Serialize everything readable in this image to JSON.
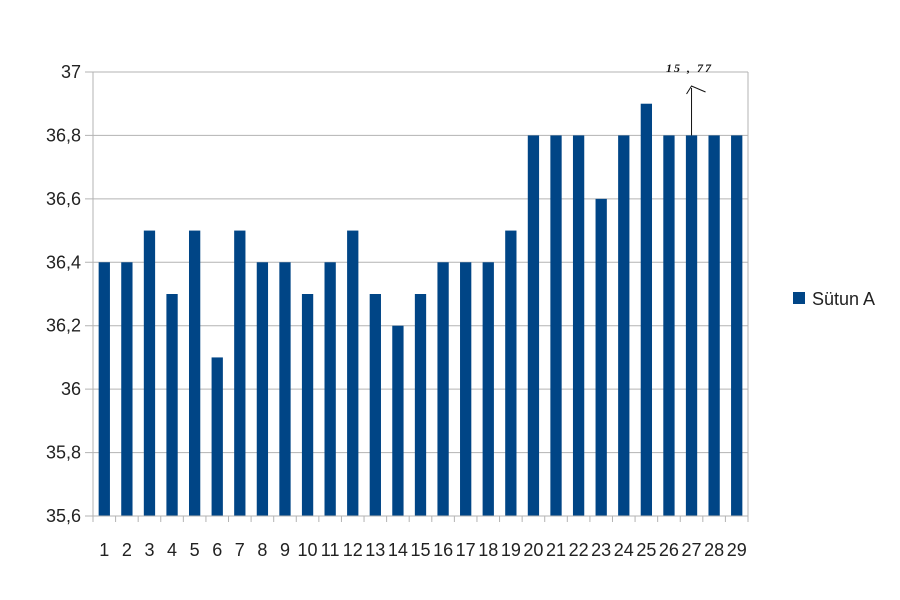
{
  "chart_data": {
    "type": "bar",
    "categories": [
      "1",
      "2",
      "3",
      "4",
      "5",
      "6",
      "7",
      "8",
      "9",
      "10",
      "11",
      "12",
      "13",
      "14",
      "15",
      "16",
      "17",
      "18",
      "19",
      "20",
      "21",
      "22",
      "23",
      "24",
      "25",
      "26",
      "27",
      "28",
      "29"
    ],
    "series": [
      {
        "name": "Sütun A",
        "values": [
          36.4,
          36.4,
          36.5,
          36.3,
          36.5,
          36.1,
          36.5,
          36.4,
          36.4,
          36.3,
          36.4,
          36.5,
          36.3,
          36.2,
          36.3,
          36.4,
          36.4,
          36.4,
          36.5,
          36.8,
          36.8,
          36.8,
          36.6,
          36.8,
          36.9,
          36.8,
          36.8,
          36.8,
          36.8
        ],
        "color": "#004586"
      }
    ],
    "ylim": [
      35.6,
      37
    ],
    "yticks": [
      "35,6",
      "35,8",
      "36",
      "36,2",
      "36,4",
      "36,6",
      "36,8",
      "37"
    ],
    "grid": true,
    "legend_position": "right",
    "annotation": {
      "text": "15 , 77",
      "category": "27"
    }
  }
}
